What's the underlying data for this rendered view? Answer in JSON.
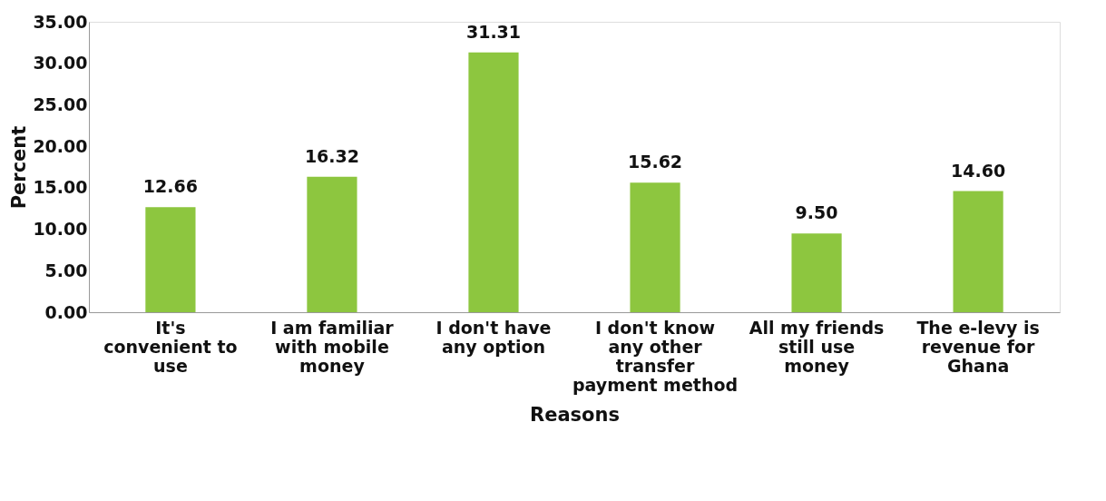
{
  "chart_data": {
    "type": "bar",
    "xlabel": "Reasons",
    "ylabel": "Percent",
    "categories": [
      "It's convenient to use",
      "I am familiar with mobile money",
      "I don't have any option",
      "I don't know any other transfer payment method",
      "All my friends still use money",
      "The e-levy is revenue for Ghana"
    ],
    "values": [
      12.66,
      16.32,
      31.31,
      15.62,
      9.5,
      14.6
    ],
    "color": "#8dc63f",
    "value_labels": [
      "12.66",
      "16.32",
      "31.31",
      "15.62",
      "9.50",
      "14.60"
    ],
    "ylim": [
      0,
      35
    ],
    "yticks": [
      {
        "value": 0,
        "label": "0.00"
      },
      {
        "value": 5,
        "label": "5.00"
      },
      {
        "value": 10,
        "label": "10.00"
      },
      {
        "value": 15,
        "label": "15.00"
      },
      {
        "value": 20,
        "label": "20.00"
      },
      {
        "value": 25,
        "label": "25.00"
      },
      {
        "value": 30,
        "label": "30.00"
      },
      {
        "value": 35,
        "label": "35.00"
      }
    ],
    "grid": false
  }
}
